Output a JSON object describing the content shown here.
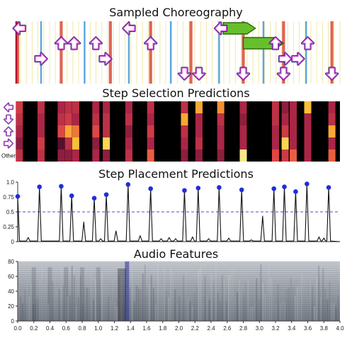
{
  "figure": {
    "panels": [
      {
        "title": "Sampled Choreography"
      },
      {
        "title": "Step Selection Predictions"
      },
      {
        "title": "Step Placement Predictions"
      },
      {
        "title": "Audio Features"
      }
    ]
  },
  "chart_data": [
    {
      "type": "scatter",
      "title": "Sampled Choreography",
      "xlim": [
        0.0,
        4.0
      ],
      "lanes": [
        "left",
        "down",
        "up",
        "right"
      ],
      "beat_lines": [
        0.0,
        0.54,
        1.15,
        1.65,
        2.15,
        2.8,
        3.3,
        3.9
      ],
      "subbeat_lines": [
        0.29,
        0.83,
        1.38,
        1.9,
        2.5,
        3.05,
        3.58
      ],
      "arrows": [
        {
          "t": 0.02,
          "lane": "left"
        },
        {
          "t": 0.29,
          "lane": "right"
        },
        {
          "t": 0.54,
          "lane": "up"
        },
        {
          "t": 0.7,
          "lane": "up"
        },
        {
          "t": 0.97,
          "lane": "up"
        },
        {
          "t": 1.09,
          "lane": "right"
        },
        {
          "t": 1.38,
          "lane": "left"
        },
        {
          "t": 1.65,
          "lane": "up"
        },
        {
          "t": 2.07,
          "lane": "down"
        },
        {
          "t": 2.25,
          "lane": "down"
        },
        {
          "t": 2.52,
          "lane": "left"
        },
        {
          "t": 2.8,
          "lane": "down"
        },
        {
          "t": 3.2,
          "lane": "up"
        },
        {
          "t": 3.3,
          "lane": "down"
        },
        {
          "t": 3.32,
          "lane": "right"
        },
        {
          "t": 3.48,
          "lane": "right"
        },
        {
          "t": 3.6,
          "lane": "up"
        },
        {
          "t": 3.9,
          "lane": "down"
        }
      ],
      "holds": [
        {
          "t_start": 2.55,
          "t_end": 2.95,
          "lane": "left"
        },
        {
          "t_start": 2.8,
          "t_end": 3.3,
          "lane": "up"
        }
      ]
    },
    {
      "type": "heatmap",
      "title": "Step Selection Predictions",
      "row_labels": [
        "",
        "",
        "",
        "",
        "Other"
      ],
      "row_icons": [
        "left-arrow",
        "down-arrow",
        "up-arrow",
        "right-arrow",
        ""
      ],
      "columns": [
        {
          "t": 0.02,
          "values": [
            0.55,
            0.5,
            0.45,
            0.4,
            0.5
          ]
        },
        {
          "t": 0.29,
          "values": [
            0.5,
            0.45,
            0.45,
            0.55,
            0.5
          ]
        },
        {
          "t": 0.54,
          "values": [
            0.45,
            0.5,
            0.6,
            0.3,
            0.4
          ]
        },
        {
          "t": 0.63,
          "values": [
            0.5,
            0.55,
            0.8,
            0.5,
            0.4
          ]
        },
        {
          "t": 0.72,
          "values": [
            0.5,
            0.45,
            0.7,
            0.85,
            0.45
          ]
        },
        {
          "t": 0.97,
          "values": [
            0.45,
            0.5,
            0.6,
            0.4,
            0.45
          ]
        },
        {
          "t": 1.1,
          "values": [
            0.45,
            0.5,
            0.5,
            0.9,
            0.4
          ]
        },
        {
          "t": 1.38,
          "values": [
            0.45,
            0.5,
            0.4,
            0.45,
            0.5
          ]
        },
        {
          "t": 1.65,
          "values": [
            0.5,
            0.45,
            0.55,
            0.45,
            0.65
          ]
        },
        {
          "t": 2.07,
          "values": [
            0.5,
            0.8,
            0.5,
            0.45,
            0.4
          ]
        },
        {
          "t": 2.25,
          "values": [
            0.8,
            0.45,
            0.45,
            0.5,
            0.4
          ]
        },
        {
          "t": 2.52,
          "values": [
            0.75,
            0.5,
            0.45,
            0.45,
            0.4
          ]
        },
        {
          "t": 2.8,
          "values": [
            0.45,
            0.4,
            0.45,
            0.45,
            0.95
          ]
        },
        {
          "t": 3.2,
          "values": [
            0.5,
            0.5,
            0.45,
            0.45,
            0.6
          ]
        },
        {
          "t": 3.32,
          "values": [
            0.4,
            0.45,
            0.55,
            0.9,
            0.55
          ]
        },
        {
          "t": 3.42,
          "values": [
            0.45,
            0.45,
            0.45,
            0.45,
            0.65
          ]
        },
        {
          "t": 3.6,
          "values": [
            0.85,
            0.45,
            0.45,
            0.45,
            0.45
          ]
        },
        {
          "t": 3.9,
          "values": [
            0.45,
            0.5,
            0.8,
            0.45,
            0.65
          ]
        }
      ]
    },
    {
      "type": "line",
      "title": "Step Placement Predictions",
      "xlim": [
        0.0,
        4.0
      ],
      "ylim": [
        0.0,
        1.0
      ],
      "yticks": [
        "0",
        "0.25",
        "0.5",
        "0.75",
        "1.0"
      ],
      "threshold": 0.5,
      "peaks": [
        {
          "t": 0.0,
          "v": 0.76
        },
        {
          "t": 0.13,
          "v": 0.07
        },
        {
          "t": 0.27,
          "v": 0.92
        },
        {
          "t": 0.54,
          "v": 0.93
        },
        {
          "t": 0.67,
          "v": 0.77
        },
        {
          "t": 0.82,
          "v": 0.33
        },
        {
          "t": 0.95,
          "v": 0.73
        },
        {
          "t": 1.03,
          "v": 0.05
        },
        {
          "t": 1.1,
          "v": 0.79
        },
        {
          "t": 1.22,
          "v": 0.18
        },
        {
          "t": 1.37,
          "v": 0.96
        },
        {
          "t": 1.52,
          "v": 0.1
        },
        {
          "t": 1.65,
          "v": 0.89
        },
        {
          "t": 1.78,
          "v": 0.05
        },
        {
          "t": 1.88,
          "v": 0.07
        },
        {
          "t": 1.96,
          "v": 0.05
        },
        {
          "t": 2.07,
          "v": 0.86
        },
        {
          "t": 2.17,
          "v": 0.08
        },
        {
          "t": 2.24,
          "v": 0.9
        },
        {
          "t": 2.37,
          "v": 0.05
        },
        {
          "t": 2.5,
          "v": 0.91
        },
        {
          "t": 2.62,
          "v": 0.06
        },
        {
          "t": 2.78,
          "v": 0.87
        },
        {
          "t": 2.9,
          "v": 0.03
        },
        {
          "t": 3.04,
          "v": 0.43
        },
        {
          "t": 3.18,
          "v": 0.89
        },
        {
          "t": 3.31,
          "v": 0.92
        },
        {
          "t": 3.45,
          "v": 0.84
        },
        {
          "t": 3.59,
          "v": 0.97
        },
        {
          "t": 3.74,
          "v": 0.08
        },
        {
          "t": 3.8,
          "v": 0.06
        },
        {
          "t": 3.86,
          "v": 0.91
        }
      ],
      "detected": [
        0.0,
        0.27,
        0.54,
        0.67,
        0.95,
        1.1,
        1.37,
        1.65,
        2.07,
        2.24,
        2.5,
        2.78,
        3.18,
        3.31,
        3.45,
        3.59,
        3.86
      ]
    },
    {
      "type": "heatmap",
      "title": "Audio Features",
      "xlim": [
        0.0,
        4.0
      ],
      "ylim": [
        0,
        80
      ],
      "yticks": [
        "0",
        "20",
        "40",
        "60",
        "80"
      ],
      "xticks": [
        "0.0",
        "0.2",
        "0.4",
        "0.6",
        "0.8",
        "1.0",
        "1.2",
        "1.4",
        "1.6",
        "1.8",
        "2.0",
        "2.2",
        "2.4",
        "2.6",
        "2.8",
        "3.0",
        "3.2",
        "3.4",
        "3.6",
        "3.8",
        "4.0"
      ]
    }
  ]
}
